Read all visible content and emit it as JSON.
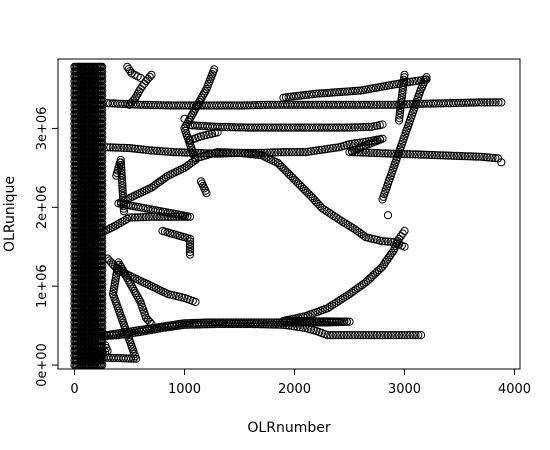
{
  "chart_data": {
    "type": "scatter",
    "title": "",
    "xlabel": "OLRnumber",
    "ylabel": "OLRunique",
    "xlim": [
      -150,
      4050
    ],
    "ylim": [
      -50000,
      3880000
    ],
    "x_ticks": [
      0,
      1000,
      2000,
      3000,
      4000
    ],
    "x_tick_labels": [
      "0",
      "1000",
      "2000",
      "3000",
      "4000"
    ],
    "y_ticks": [
      0,
      1000000,
      2000000,
      3000000
    ],
    "y_tick_labels": [
      "0e+00",
      "1e+06",
      "2e+06",
      "3e+06"
    ],
    "grid": false,
    "legend": "none",
    "marker": "open-circle",
    "marker_color": "#000000",
    "dense_block": {
      "x_range": [
        0,
        260
      ],
      "y_range": [
        0,
        3800000
      ]
    },
    "series": [
      {
        "points": [
          [
            300,
            3320000
          ],
          [
            600,
            3300000
          ],
          [
            900,
            3290000
          ],
          [
            1200,
            3290000
          ],
          [
            1500,
            3290000
          ],
          [
            1800,
            3300000
          ],
          [
            2100,
            3300000
          ],
          [
            2400,
            3300000
          ],
          [
            2700,
            3300000
          ],
          [
            2900,
            3300000
          ],
          [
            3100,
            3310000
          ],
          [
            3400,
            3320000
          ],
          [
            3700,
            3330000
          ],
          [
            3880,
            3330000
          ],
          [
            1050,
            3040000
          ],
          [
            1300,
            3020000
          ],
          [
            1600,
            3010000
          ],
          [
            1900,
            3010000
          ],
          [
            2200,
            3010000
          ],
          [
            2500,
            3010000
          ],
          [
            2700,
            3020000
          ],
          [
            2800,
            3050000
          ],
          [
            300,
            2760000
          ],
          [
            500,
            2750000
          ],
          [
            700,
            2720000
          ],
          [
            900,
            2700000
          ],
          [
            1100,
            2690000
          ],
          [
            1300,
            2680000
          ],
          [
            1500,
            2690000
          ],
          [
            1700,
            2690000
          ],
          [
            1900,
            2700000
          ],
          [
            2100,
            2700000
          ],
          [
            2200,
            2720000
          ],
          [
            2300,
            2740000
          ],
          [
            2400,
            2760000
          ],
          [
            2500,
            2800000
          ],
          [
            2650,
            2830000
          ],
          [
            2800,
            2870000
          ],
          [
            2500,
            2700000
          ],
          [
            2700,
            2690000
          ],
          [
            2900,
            2680000
          ],
          [
            3100,
            2670000
          ],
          [
            3300,
            2660000
          ],
          [
            3500,
            2650000
          ],
          [
            3700,
            2640000
          ],
          [
            3850,
            2620000
          ],
          [
            1100,
            2620000
          ],
          [
            1200,
            2660000
          ],
          [
            1300,
            2700000
          ],
          [
            1500,
            2690000
          ],
          [
            1700,
            2660000
          ],
          [
            1850,
            2560000
          ],
          [
            1950,
            2420000
          ],
          [
            2050,
            2280000
          ],
          [
            2150,
            2140000
          ],
          [
            2250,
            1990000
          ],
          [
            2400,
            1850000
          ],
          [
            2550,
            1720000
          ],
          [
            2650,
            1620000
          ],
          [
            2800,
            1570000
          ],
          [
            2900,
            1560000
          ],
          [
            3000,
            1500000
          ],
          [
            1900,
            3390000
          ],
          [
            2200,
            3440000
          ],
          [
            2600,
            3480000
          ],
          [
            3000,
            3580000
          ],
          [
            3200,
            3620000
          ],
          [
            3150,
            380000
          ],
          [
            3100,
            380000
          ],
          [
            3000,
            380000
          ],
          [
            2800,
            380000
          ],
          [
            2600,
            380000
          ],
          [
            2400,
            380000
          ],
          [
            2300,
            380000
          ],
          [
            2200,
            430000
          ],
          [
            2100,
            470000
          ],
          [
            1900,
            510000
          ],
          [
            1600,
            520000
          ],
          [
            1300,
            520000
          ],
          [
            1000,
            510000
          ],
          [
            800,
            470000
          ],
          [
            600,
            420000
          ],
          [
            400,
            380000
          ],
          [
            200,
            360000
          ],
          [
            1000,
            530000
          ],
          [
            1200,
            540000
          ],
          [
            1400,
            540000
          ],
          [
            1700,
            540000
          ],
          [
            2000,
            540000
          ],
          [
            2300,
            540000
          ],
          [
            2500,
            550000
          ],
          [
            1900,
            560000
          ],
          [
            2100,
            620000
          ],
          [
            2300,
            720000
          ],
          [
            2500,
            900000
          ],
          [
            2650,
            1050000
          ],
          [
            2800,
            1250000
          ],
          [
            2900,
            1450000
          ],
          [
            2950,
            1600000
          ],
          [
            3000,
            1700000
          ],
          [
            200,
            1650000
          ],
          [
            350,
            1750000
          ],
          [
            500,
            1870000
          ],
          [
            700,
            1880000
          ],
          [
            900,
            1880000
          ],
          [
            1050,
            1880000
          ],
          [
            400,
            2050000
          ],
          [
            550,
            2150000
          ],
          [
            700,
            2250000
          ],
          [
            850,
            2400000
          ],
          [
            1000,
            2500000
          ],
          [
            1100,
            2600000
          ],
          [
            1000,
            3000000
          ],
          [
            1100,
            3250000
          ],
          [
            1200,
            3500000
          ],
          [
            1270,
            3750000
          ],
          [
            500,
            3300000
          ],
          [
            550,
            3380000
          ],
          [
            600,
            3500000
          ],
          [
            650,
            3600000
          ],
          [
            700,
            3680000
          ],
          [
            2800,
            2100000
          ],
          [
            2850,
            2300000
          ],
          [
            2900,
            2500000
          ],
          [
            2950,
            2700000
          ],
          [
            3000,
            2900000
          ],
          [
            3050,
            3100000
          ],
          [
            3100,
            3300000
          ],
          [
            3150,
            3500000
          ],
          [
            3200,
            3650000
          ],
          [
            300,
            1350000
          ],
          [
            400,
            1200000
          ],
          [
            550,
            1100000
          ],
          [
            700,
            1000000
          ],
          [
            850,
            900000
          ],
          [
            1000,
            850000
          ],
          [
            1100,
            800000
          ],
          [
            1050,
            2850000
          ],
          [
            1150,
            2900000
          ],
          [
            1300,
            2950000
          ],
          [
            280,
            250000
          ],
          [
            300,
            180000
          ],
          [
            150,
            100000
          ],
          [
            560,
            80000
          ],
          [
            350,
            900000
          ],
          [
            400,
            1300000
          ],
          [
            600,
            800000
          ],
          [
            650,
            600000
          ],
          [
            700,
            520000
          ],
          [
            480,
            3780000
          ],
          [
            520,
            3700000
          ],
          [
            600,
            3640000
          ],
          [
            380,
            2400000
          ],
          [
            420,
            2600000
          ],
          [
            450,
            1950000
          ],
          [
            1000,
            3120000
          ],
          [
            800,
            1700000
          ],
          [
            1050,
            1600000
          ],
          [
            1050,
            1400000
          ],
          [
            2850,
            1900000
          ],
          [
            3000,
            3680000
          ],
          [
            2950,
            3100000
          ],
          [
            3880,
            2570000
          ],
          [
            1150,
            2330000
          ],
          [
            1200,
            2180000
          ]
        ]
      }
    ]
  }
}
